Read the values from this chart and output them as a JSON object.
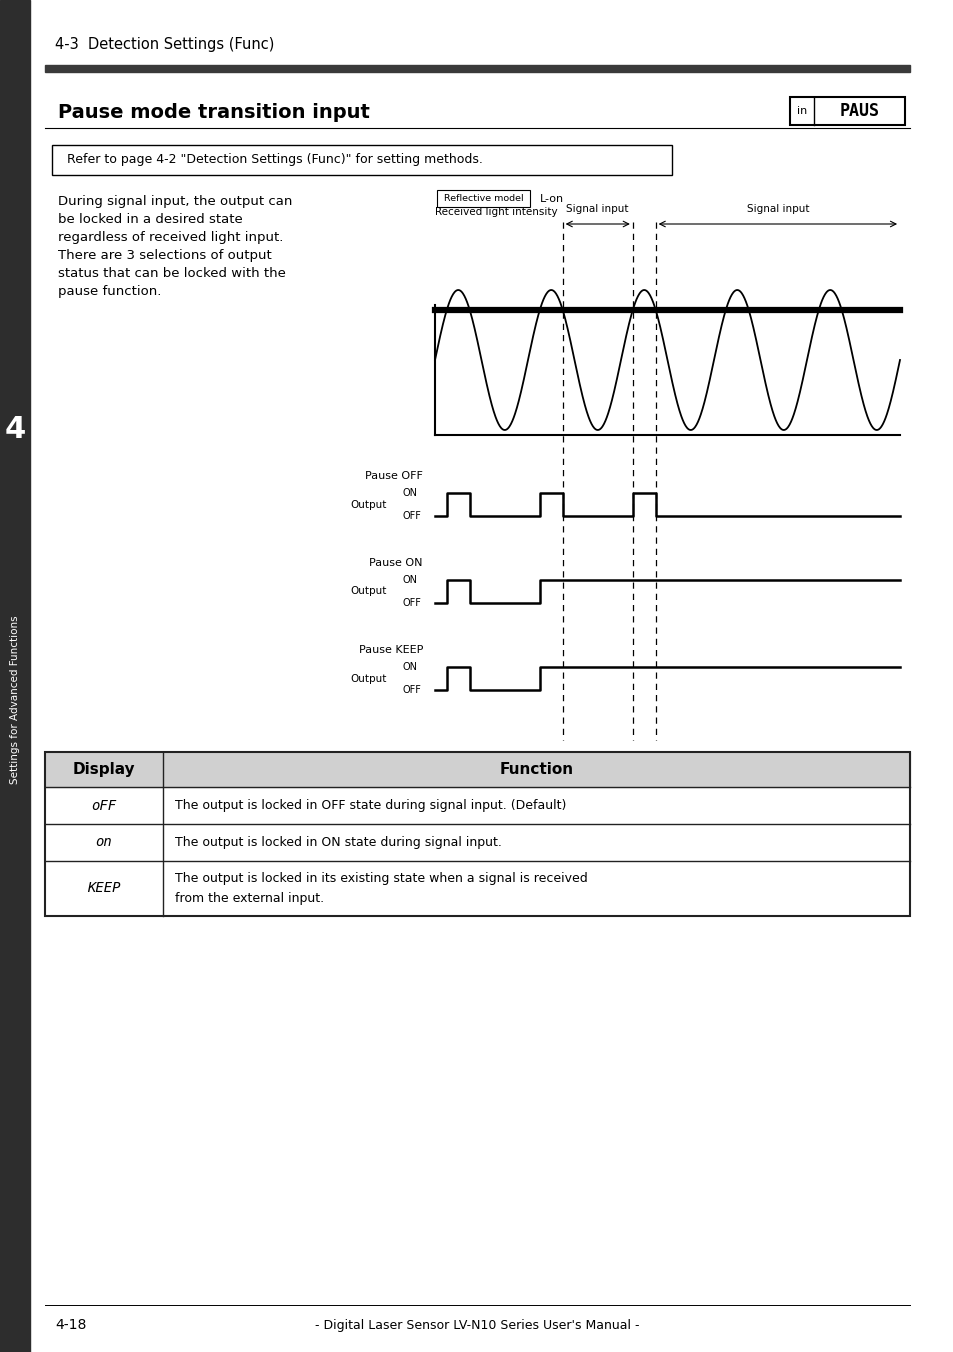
{
  "page_header": "4-3  Detection Settings (Func)",
  "section_title": "Pause mode transition input",
  "badge_small": "in",
  "badge_large": "PAUS",
  "ref_box_text": "Refer to page 4-2 \"Detection Settings (Func)\" for setting methods.",
  "body_text_lines": [
    "During signal input, the output can",
    "be locked in a desired state",
    "regardless of received light input.",
    "There are 3 selections of output",
    "status that can be locked with the",
    "pause function."
  ],
  "diagram_label_reflective": "Reflective model",
  "diagram_label_lon": "L-on",
  "diagram_label_received": "Received light intensity",
  "diagram_label_signal1": "Signal input",
  "diagram_label_signal2": "Signal input",
  "pause_labels": [
    "Pause OFF",
    "Pause ON",
    "Pause KEEP"
  ],
  "output_label": "Output",
  "on_label": "ON",
  "off_label": "OFF",
  "table_headers": [
    "Display",
    "Function"
  ],
  "table_row1_display": "oFF",
  "table_row1_func": "The output is locked in OFF state during signal input. (Default)",
  "table_row2_display": "on",
  "table_row2_func": "The output is locked in ON state during signal input.",
  "table_row3_display": "KEEP",
  "table_row3_func1": "The output is locked in its existing state when a signal is received",
  "table_row3_func2": "from the external input.",
  "sidebar_text": "Settings for Advanced Functions",
  "sidebar_num": "4",
  "footer_page": "4-18",
  "footer_center": "- Digital Laser Sensor LV-N10 Series User's Manual -",
  "bg_color": "#ffffff",
  "header_bar_color": "#3a3a3a",
  "table_header_bg": "#d0d0d0",
  "table_border_color": "#222222",
  "sidebar_bg": "#2d2d2d"
}
